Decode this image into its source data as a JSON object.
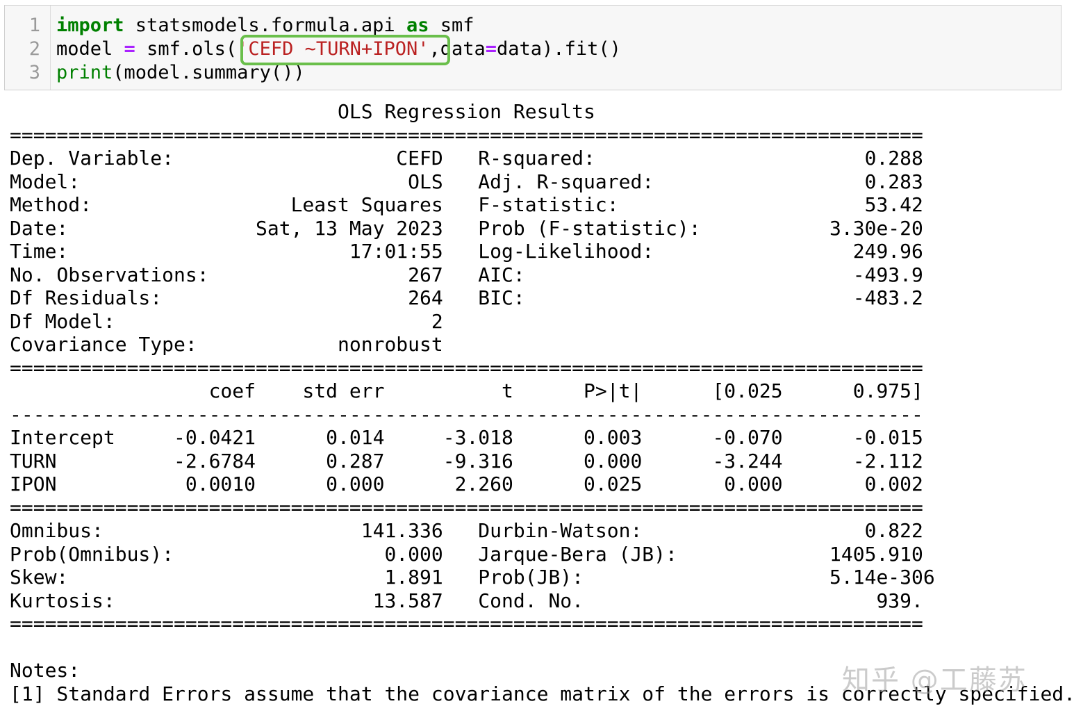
{
  "code_cell": {
    "line_numbers": [
      "1",
      "2",
      "3"
    ],
    "line1": {
      "kw_import": "import",
      "module": " statsmodels.formula.api ",
      "kw_as": "as",
      "alias": " smf"
    },
    "line2": {
      "lhs": "model ",
      "op_eq": "=",
      "call": " smf.ols(",
      "formula": "'CEFD ~TURN+IPON'",
      "comma": ",",
      "arg": "data",
      "op_eq2": "=",
      "rest": "data).fit()"
    },
    "line3": {
      "builtin_print": "print",
      "rest": "(model.summary())"
    }
  },
  "output": {
    "text_lines": [
      "                            OLS Regression Results                            ",
      "==============================================================================",
      "Dep. Variable:                   CEFD   R-squared:                       0.288",
      "Model:                            OLS   Adj. R-squared:                  0.283",
      "Method:                 Least Squares   F-statistic:                     53.42",
      "Date:                Sat, 13 May 2023   Prob (F-statistic):           3.30e-20",
      "Time:                        17:01:55   Log-Likelihood:                 249.96",
      "No. Observations:                 267   AIC:                            -493.9",
      "Df Residuals:                     264   BIC:                            -483.2",
      "Df Model:                           2                                         ",
      "Covariance Type:            nonrobust                                         ",
      "==============================================================================",
      "                 coef    std err          t      P>|t|      [0.025      0.975]",
      "------------------------------------------------------------------------------",
      "Intercept     -0.0421      0.014     -3.018      0.003      -0.070      -0.015",
      "TURN          -2.6784      0.287     -9.316      0.000      -3.244      -2.112",
      "IPON           0.0010      0.000      2.260      0.025       0.000       0.002",
      "==============================================================================",
      "Omnibus:                      141.336   Durbin-Watson:                   0.822",
      "Prob(Omnibus):                  0.000   Jarque-Bera (JB):             1405.910",
      "Skew:                           1.891   Prob(JB):                     5.14e-306",
      "Kurtosis:                      13.587   Cond. No.                         939.",
      "==============================================================================",
      "",
      "Notes:",
      "[1] Standard Errors assume that the covariance matrix of the errors is correctly specified."
    ]
  },
  "watermark": "知乎 @工藤苏",
  "colors": {
    "keyword": "#008000",
    "operator": "#aa22ff",
    "string": "#ba2121",
    "highlight_box": "#6abf4b",
    "cell_background": "#f7f7f7"
  }
}
